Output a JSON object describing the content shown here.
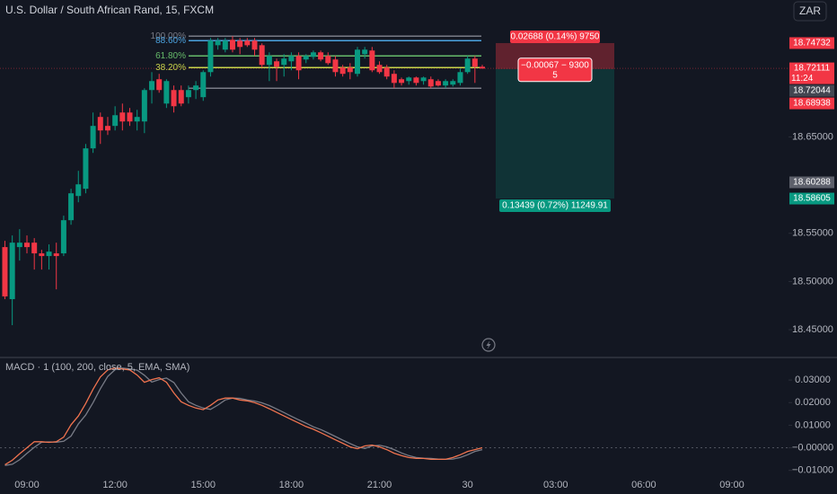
{
  "header": {
    "title": "U.S. Dollar / South African Rand, 15, FXCM",
    "currency": "ZAR"
  },
  "chart_data": [
    {
      "type": "candlestick",
      "x": [
        -3,
        -2,
        -1,
        0,
        1,
        2,
        3,
        4,
        5,
        6,
        7,
        8,
        9,
        10,
        11,
        12,
        13,
        14,
        15,
        16,
        17,
        18,
        19,
        20,
        21,
        22,
        23,
        24,
        25,
        26,
        27,
        28,
        29,
        30,
        31,
        32,
        33,
        34,
        35,
        36,
        37,
        38,
        39,
        40,
        41,
        42,
        43,
        44,
        45,
        46,
        47,
        48,
        49,
        50,
        51,
        52,
        53,
        54,
        55,
        56,
        57,
        58,
        59,
        60,
        61,
        62
      ],
      "open": [
        18.5357,
        18.4817,
        18.5357,
        18.5403,
        18.5403,
        18.5292,
        18.5264,
        18.5292,
        18.5292,
        18.5636,
        18.5887,
        18.5962,
        18.6381,
        18.6707,
        18.6614,
        18.6614,
        18.6753,
        18.6753,
        18.666,
        18.666,
        18.6986,
        18.7098,
        18.6846,
        18.6986,
        18.6986,
        18.6912,
        18.6986,
        18.6912,
        18.7172,
        18.7451,
        18.7405,
        18.7507,
        18.7498,
        18.7498,
        18.7498,
        18.7451,
        18.7247,
        18.7284,
        18.7247,
        18.7284,
        18.734,
        18.7303,
        18.733,
        18.7377,
        18.734,
        18.7303,
        18.7219,
        18.7219,
        18.7154,
        18.7358,
        18.7396,
        18.7247,
        18.7219,
        18.7154,
        18.7098,
        18.7079,
        18.7116,
        18.7079,
        18.7098,
        18.7079,
        18.7033,
        18.7042,
        18.706,
        18.7172,
        18.7312,
        18.7228
      ],
      "high": [
        18.5422,
        18.5478,
        18.5543,
        18.5478,
        18.545,
        18.5329,
        18.5385,
        18.5403,
        18.5683,
        18.5962,
        18.6148,
        18.6427,
        18.6753,
        18.6753,
        18.6707,
        18.6818,
        18.6846,
        18.68,
        18.6781,
        18.7005,
        18.7172,
        18.7154,
        18.7098,
        18.7033,
        18.7033,
        18.7033,
        18.7079,
        18.7191,
        18.7526,
        18.7526,
        18.7526,
        18.7545,
        18.7526,
        18.7526,
        18.7526,
        18.747,
        18.7377,
        18.7312,
        18.7358,
        18.7377,
        18.7377,
        18.7358,
        18.7396,
        18.7396,
        18.7377,
        18.734,
        18.7247,
        18.7265,
        18.7433,
        18.7433,
        18.7433,
        18.7284,
        18.7247,
        18.7191,
        18.7116,
        18.7126,
        18.7126,
        18.7126,
        18.7126,
        18.7098,
        18.7098,
        18.7098,
        18.7209,
        18.734,
        18.734,
        18.7247
      ],
      "low": [
        18.4817,
        18.4547,
        18.5217,
        18.5292,
        18.5124,
        18.5124,
        18.5124,
        18.4919,
        18.5264,
        18.5589,
        18.5822,
        18.5915,
        18.6334,
        18.6427,
        18.652,
        18.6567,
        18.6567,
        18.6614,
        18.6567,
        18.6539,
        18.6846,
        18.6958,
        18.68,
        18.6753,
        18.6818,
        18.6846,
        18.6893,
        18.6874,
        18.7126,
        18.7405,
        18.7377,
        18.7377,
        18.7358,
        18.7433,
        18.734,
        18.7219,
        18.7079,
        18.7079,
        18.7126,
        18.7191,
        18.7098,
        18.7265,
        18.7303,
        18.7284,
        18.7247,
        18.7126,
        18.7126,
        18.7098,
        18.7126,
        18.7312,
        18.7172,
        18.7154,
        18.7098,
        18.7005,
        18.7033,
        18.7042,
        18.7033,
        18.7042,
        18.7005,
        18.7023,
        18.7005,
        18.7023,
        18.7033,
        18.7154,
        18.706,
        18.7209
      ],
      "close": [
        18.4845,
        18.5403,
        18.5403,
        18.5357,
        18.5292,
        18.5264,
        18.531,
        18.5264,
        18.5636,
        18.5915,
        18.6008,
        18.6381,
        18.6614,
        18.6567,
        18.6567,
        18.6725,
        18.666,
        18.666,
        18.6707,
        18.6986,
        18.7079,
        18.6986,
        18.7079,
        18.6818,
        18.6846,
        18.6986,
        18.7033,
        18.7172,
        18.7498,
        18.7498,
        18.7498,
        18.7405,
        18.7433,
        18.7451,
        18.7405,
        18.7247,
        18.734,
        18.7228,
        18.7312,
        18.734,
        18.7191,
        18.734,
        18.7377,
        18.7303,
        18.7265,
        18.7172,
        18.7154,
        18.7172,
        18.7405,
        18.7405,
        18.7191,
        18.7172,
        18.7126,
        18.706,
        18.706,
        18.7116,
        18.706,
        18.7116,
        18.7023,
        18.7033,
        18.7079,
        18.7079,
        18.7172,
        18.7312,
        18.7228,
        18.7209
      ],
      "up_color": "#089981",
      "down_color": "#f23645",
      "xlim": [
        -3.67,
        103.7
      ],
      "ylim": [
        18.424,
        18.792
      ],
      "yticks": [
        {
          "value": 18.65,
          "label": "18.65000"
        },
        {
          "value": 18.55,
          "label": "18.55000"
        },
        {
          "value": 18.5,
          "label": "18.50000"
        },
        {
          "value": 18.45,
          "label": "18.45000"
        }
      ],
      "price_labels": [
        {
          "value": 18.74732,
          "color": "#f23645"
        },
        {
          "value": 18.72044,
          "color": "#434651"
        },
        {
          "value": 18.68938,
          "color": "#f23645"
        },
        {
          "value": 18.60288,
          "color": "#5d606b"
        },
        {
          "value": 18.58605,
          "color": "#089981"
        }
      ],
      "current_price": {
        "value": 18.72111,
        "countdown": "11:24",
        "color": "#f23645"
      },
      "fibonacci": {
        "levels": [
          {
            "value": 18.7545,
            "label": "100.00%",
            "color": "#787b86"
          },
          {
            "value": 18.7498,
            "label": "88.60%",
            "color": "#4ba3e0"
          },
          {
            "value": 18.734,
            "label": "61.80%",
            "color": "#66bb6a"
          },
          {
            "value": 18.7219,
            "label": "38.20%",
            "color": "#c9d34b"
          },
          {
            "value": 18.7005,
            "color": "#787b86"
          }
        ]
      },
      "position": {
        "entry": 18.72044,
        "stop": 18.74732,
        "target": 18.58605,
        "stop_label": "0.02688 (0.14%) 9750",
        "pnl_label": "−0.00067 − 9300",
        "pnl_label_2": "5",
        "target_label": "0.13439 (0.72%) 11249.91"
      }
    },
    {
      "type": "line",
      "title": "MACD · 1 (100, 200, close, 5, EMA, SMA)",
      "x": [
        -3,
        -2,
        -1,
        0,
        1,
        2,
        3,
        4,
        5,
        6,
        7,
        8,
        9,
        10,
        11,
        12,
        13,
        14,
        15,
        16,
        17,
        18,
        19,
        20,
        21,
        22,
        23,
        24,
        25,
        26,
        27,
        28,
        29,
        30,
        31,
        32,
        33,
        34,
        35,
        36,
        37,
        38,
        39,
        40,
        41,
        42,
        43,
        44,
        45,
        46,
        47,
        48,
        49,
        50,
        51,
        52,
        53,
        54,
        55,
        56,
        57,
        58,
        59,
        60,
        61,
        62
      ],
      "series": [
        {
          "color": "#787b86",
          "values": [
            -0.0078,
            -0.0073,
            -0.0053,
            -0.0025,
            0.0002,
            0.0025,
            0.0026,
            0.0025,
            0.0029,
            0.0052,
            0.0106,
            0.0145,
            0.02,
            0.0262,
            0.0316,
            0.0346,
            0.0353,
            0.0349,
            0.0344,
            0.0321,
            0.0291,
            0.0302,
            0.0309,
            0.0289,
            0.0243,
            0.0204,
            0.0188,
            0.0176,
            0.017,
            0.0189,
            0.0212,
            0.022,
            0.0219,
            0.0212,
            0.0207,
            0.0199,
            0.0187,
            0.0172,
            0.0156,
            0.014,
            0.0124,
            0.0109,
            0.0093,
            0.0081,
            0.0066,
            0.005,
            0.0034,
            0.0019,
            0.0004,
            -0.0003,
            0.0008,
            0.0011,
            0.0004,
            -0.0008,
            -0.0023,
            -0.0035,
            -0.0043,
            -0.0046,
            -0.0047,
            -0.005,
            -0.0051,
            -0.005,
            -0.0043,
            -0.0031,
            -0.0016,
            -0.0008
          ]
        },
        {
          "color": "#f0734f",
          "values": [
            -0.0075,
            -0.0055,
            -0.0027,
            0,
            0.0027,
            0.0027,
            0.0024,
            0.0027,
            0.0047,
            0.0102,
            0.0141,
            0.0196,
            0.0259,
            0.0314,
            0.0345,
            0.0353,
            0.0349,
            0.0345,
            0.0322,
            0.029,
            0.0302,
            0.031,
            0.029,
            0.0243,
            0.0204,
            0.0188,
            0.0176,
            0.0169,
            0.0188,
            0.0212,
            0.022,
            0.022,
            0.0212,
            0.0208,
            0.02,
            0.0188,
            0.0173,
            0.0157,
            0.0141,
            0.0125,
            0.011,
            0.0094,
            0.0082,
            0.0067,
            0.0051,
            0.0035,
            0.002,
            0.0004,
            -0.0004,
            0.0008,
            0.0012,
            0.0004,
            -0.0008,
            -0.0024,
            -0.0035,
            -0.0043,
            -0.0047,
            -0.0047,
            -0.0051,
            -0.0051,
            -0.0051,
            -0.0043,
            -0.0031,
            -0.0016,
            -0.0008,
            0
          ]
        }
      ],
      "xlim": [
        -3.67,
        103.7
      ],
      "ylim": [
        -0.0145,
        0.0392
      ],
      "yticks": [
        {
          "value": 0.03,
          "label": "0.03000"
        },
        {
          "value": 0.02,
          "label": "0.02000"
        },
        {
          "value": 0.01,
          "label": "0.01000"
        },
        {
          "value": 0,
          "label": "−0.00000"
        },
        {
          "value": -0.01,
          "label": "−0.01000"
        }
      ],
      "xticks": [
        {
          "value": 0,
          "label": "09:00"
        },
        {
          "value": 12,
          "label": "12:00"
        },
        {
          "value": 24,
          "label": "15:00"
        },
        {
          "value": 36,
          "label": "18:00"
        },
        {
          "value": 48,
          "label": "21:00"
        },
        {
          "value": 60,
          "label": "30"
        },
        {
          "value": 72,
          "label": "03:00"
        },
        {
          "value": 84,
          "label": "06:00"
        },
        {
          "value": 96,
          "label": "09:00"
        }
      ]
    }
  ]
}
